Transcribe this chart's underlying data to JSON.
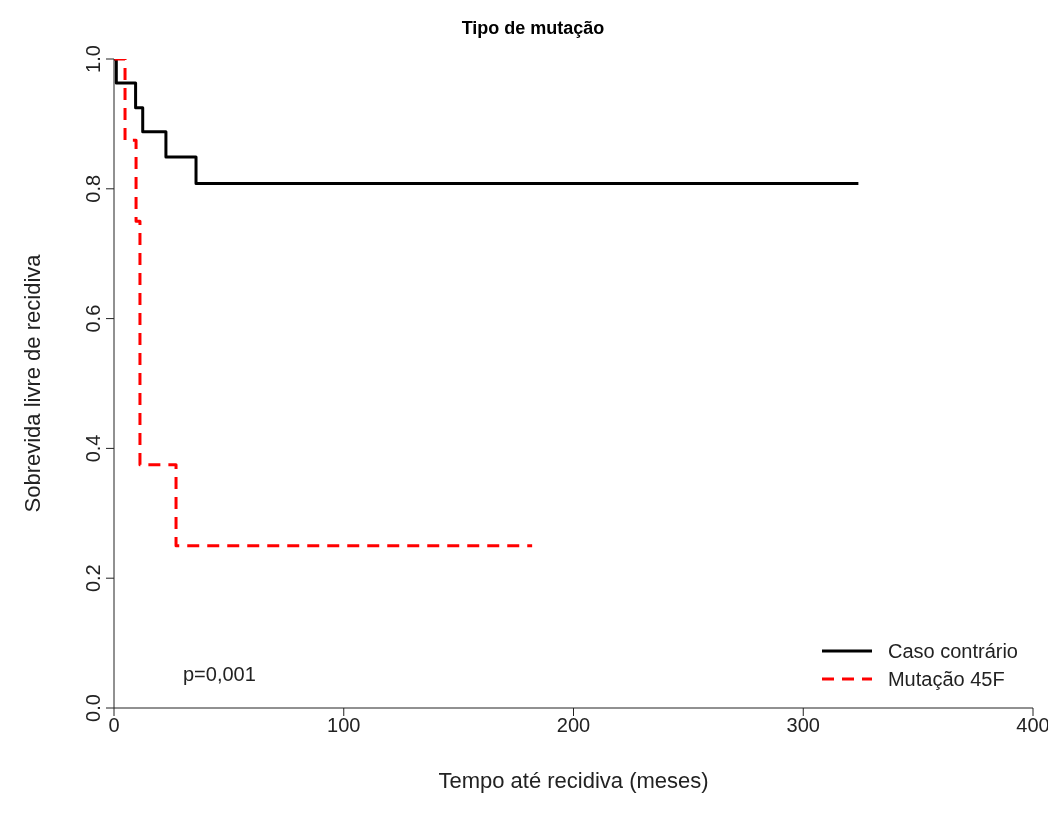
{
  "chart_data": {
    "type": "step",
    "title": "Tipo de mutação",
    "xlabel": "Tempo até recidiva (meses)",
    "ylabel": "Sobrevida livre de recidiva",
    "xlim": [
      0,
      400
    ],
    "xticks": [
      0,
      100,
      200,
      300,
      400
    ],
    "ylim": [
      0,
      1
    ],
    "yticks": [
      {
        "value": 0,
        "label": "0.0"
      },
      {
        "value": 0.2,
        "label": "0.2"
      },
      {
        "value": 0.4,
        "label": "0.4"
      },
      {
        "value": 0.6,
        "label": "0.6"
      },
      {
        "value": 0.8,
        "label": "0.8"
      },
      {
        "value": 1,
        "label": "1.0"
      }
    ],
    "grid": false,
    "legend": "bottom right",
    "annotations": [
      "p=0,001"
    ],
    "series": [
      {
        "name": "Caso contrário",
        "color": "#000000",
        "line_style": "solid",
        "x": [
          0,
          1,
          9.4,
          12.5,
          22.6,
          35.7,
          324
        ],
        "values": [
          1,
          0.963,
          0.925,
          0.888,
          0.849,
          0.808,
          0.808
        ]
      },
      {
        "name": "Mutação 45F",
        "color": "#ff0000",
        "line_style": "dashed",
        "x": [
          0,
          4.8,
          9.6,
          11.3,
          27,
          182
        ],
        "values": [
          1,
          0.875,
          0.75,
          0.375,
          0.25,
          0.25
        ]
      }
    ]
  }
}
